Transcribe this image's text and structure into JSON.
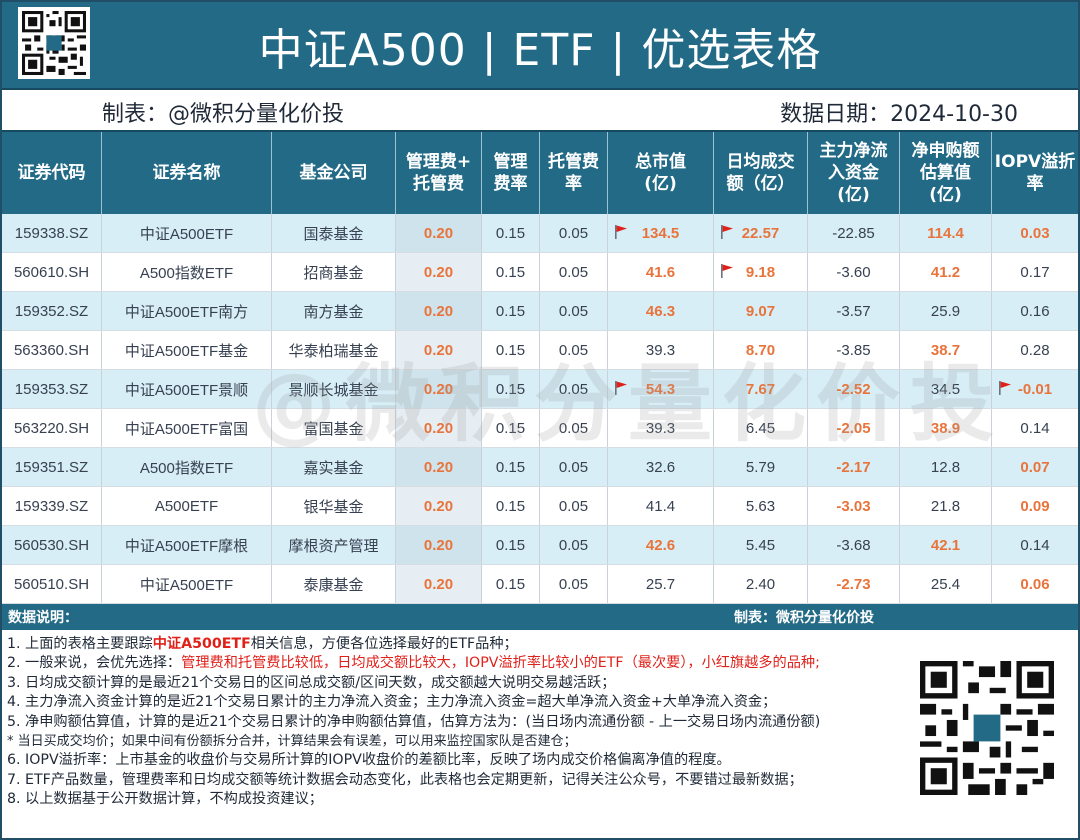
{
  "title": "中证A500 | ETF | 优选表格",
  "subheader": {
    "maker": "制表：@微积分量化价投",
    "date": "数据日期：2024-10-30"
  },
  "watermark": "@微积分量化价投",
  "colors": {
    "header_bg": "#226a86",
    "alt_row": "#d7eef7",
    "highlight": "#e8743b",
    "flag": "#e0211a",
    "note_red": "#e0211a"
  },
  "table": {
    "headers": [
      "证券代码",
      "证券名称",
      "基金公司",
      "管理费+\n托管费",
      "管理\n费率",
      "托管费\n率",
      "总市值\n(亿)",
      "日均成交\n额（亿）",
      "主力净流\n入资金\n(亿)",
      "净申购额\n估算值\n(亿)",
      "IOPV溢折\n率"
    ],
    "rows": [
      {
        "code": "159338.SZ",
        "name": "中证A500ETF",
        "company": "国泰基金",
        "fee_total": "0.20",
        "mgmt_fee": "0.15",
        "custody_fee": "0.05",
        "market_cap": "134.5",
        "daily_turnover": "22.57",
        "net_inflow": "-22.85",
        "net_subscription": "114.4",
        "iopv": "0.03"
      },
      {
        "code": "560610.SH",
        "name": "A500指数ETF",
        "company": "招商基金",
        "fee_total": "0.20",
        "mgmt_fee": "0.15",
        "custody_fee": "0.05",
        "market_cap": "41.6",
        "daily_turnover": "9.18",
        "net_inflow": "-3.60",
        "net_subscription": "41.2",
        "iopv": "0.17"
      },
      {
        "code": "159352.SZ",
        "name": "中证A500ETF南方",
        "company": "南方基金",
        "fee_total": "0.20",
        "mgmt_fee": "0.15",
        "custody_fee": "0.05",
        "market_cap": "46.3",
        "daily_turnover": "9.07",
        "net_inflow": "-3.57",
        "net_subscription": "25.9",
        "iopv": "0.16"
      },
      {
        "code": "563360.SH",
        "name": "中证A500ETF基金",
        "company": "华泰柏瑞基金",
        "fee_total": "0.20",
        "mgmt_fee": "0.15",
        "custody_fee": "0.05",
        "market_cap": "39.3",
        "daily_turnover": "8.70",
        "net_inflow": "-3.85",
        "net_subscription": "38.7",
        "iopv": "0.28"
      },
      {
        "code": "159353.SZ",
        "name": "中证A500ETF景顺",
        "company": "景顺长城基金",
        "fee_total": "0.20",
        "mgmt_fee": "0.15",
        "custody_fee": "0.05",
        "market_cap": "54.3",
        "daily_turnover": "7.67",
        "net_inflow": "-2.52",
        "net_subscription": "34.5",
        "iopv": "-0.01"
      },
      {
        "code": "563220.SH",
        "name": "中证A500ETF富国",
        "company": "富国基金",
        "fee_total": "0.20",
        "mgmt_fee": "0.15",
        "custody_fee": "0.05",
        "market_cap": "39.3",
        "daily_turnover": "6.45",
        "net_inflow": "-2.05",
        "net_subscription": "38.9",
        "iopv": "0.14"
      },
      {
        "code": "159351.SZ",
        "name": "A500指数ETF",
        "company": "嘉实基金",
        "fee_total": "0.20",
        "mgmt_fee": "0.15",
        "custody_fee": "0.05",
        "market_cap": "32.6",
        "daily_turnover": "5.79",
        "net_inflow": "-2.17",
        "net_subscription": "12.8",
        "iopv": "0.07"
      },
      {
        "code": "159339.SZ",
        "name": "A500ETF",
        "company": "银华基金",
        "fee_total": "0.20",
        "mgmt_fee": "0.15",
        "custody_fee": "0.05",
        "market_cap": "41.4",
        "daily_turnover": "5.63",
        "net_inflow": "-3.03",
        "net_subscription": "21.8",
        "iopv": "0.09"
      },
      {
        "code": "560530.SH",
        "name": "中证A500ETF摩根",
        "company": "摩根资产管理",
        "fee_total": "0.20",
        "mgmt_fee": "0.15",
        "custody_fee": "0.05",
        "market_cap": "42.6",
        "daily_turnover": "5.45",
        "net_inflow": "-3.68",
        "net_subscription": "42.1",
        "iopv": "0.14"
      },
      {
        "code": "560510.SH",
        "name": "中证A500ETF",
        "company": "泰康基金",
        "fee_total": "0.20",
        "mgmt_fee": "0.15",
        "custody_fee": "0.05",
        "market_cap": "25.7",
        "daily_turnover": "2.40",
        "net_inflow": "-2.73",
        "net_subscription": "25.4",
        "iopv": "0.06"
      }
    ],
    "highlights": [
      [
        "market_cap",
        "daily_turnover",
        "net_subscription",
        "iopv"
      ],
      [
        "market_cap",
        "daily_turnover",
        "net_subscription"
      ],
      [
        "market_cap",
        "daily_turnover"
      ],
      [
        "daily_turnover",
        "net_subscription"
      ],
      [
        "market_cap",
        "daily_turnover",
        "net_inflow",
        "iopv"
      ],
      [
        "net_inflow",
        "net_subscription"
      ],
      [
        "net_inflow",
        "iopv"
      ],
      [
        "net_inflow",
        "iopv"
      ],
      [
        "market_cap",
        "net_subscription"
      ],
      [
        "net_inflow",
        "iopv"
      ]
    ],
    "flags": [
      [
        "market_cap",
        "daily_turnover"
      ],
      [
        "daily_turnover"
      ],
      [],
      [],
      [
        "market_cap",
        "iopv"
      ],
      [],
      [],
      [],
      [],
      []
    ]
  },
  "notes": {
    "title": "数据说明：",
    "credit": "制表：微积分量化价投",
    "n1_a": "1. 上面的表格主要跟踪",
    "n1_b": "中证A500ETF",
    "n1_c": "相关信息，方便各位选择最好的ETF品种；",
    "n2_a": "2. 一般来说，会优先选择：",
    "n2_b": "管理费和托管费比较低，日均成交额比较大，IOPV溢折率比较小的ETF（最次要），小红旗越多的品种;",
    "n3": "3. 日均成交额计算的是最近21个交易日的区间总成交额/区间天数，成交额越大说明交易越活跃；",
    "n4": "4. 主力净流入资金计算的是近21个交易日累计的主力净流入资金；主力净流入资金=超大单净流入资金+大单净流入资金；",
    "n5": "5. 净申购额估算值，计算的是近21个交易日累计的净申购额估算值，估算方法为：(当日场内流通份额 - 上一交易日场内流通份额)",
    "n5b": "* 当日买成交均价；如果中间有份额拆分合并，计算结果会有误差，可以用来监控国家队是否建仓；",
    "n6": "6.  IOPV溢折率：上市基金的收盘价与交易所计算的IOPV收盘价的差额比率，反映了场内成交价格偏离净值的程度。",
    "n7": "7. ETF产品数量，管理费率和日均成交额等统计数据会动态变化，此表格也会定期更新，记得关注公众号，不要错过最新数据；",
    "n8": "8. 以上数据基于公开数据计算，不构成投资建议；"
  }
}
